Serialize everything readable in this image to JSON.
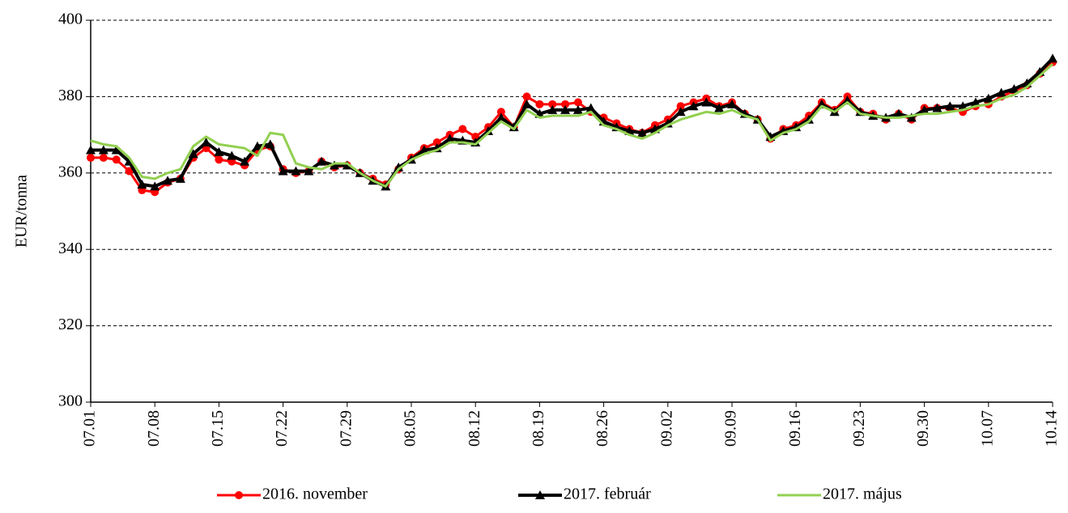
{
  "chart_data": {
    "type": "line",
    "y_label": "EUR/tonna",
    "categories": [
      "07.01",
      null,
      null,
      null,
      null,
      "07.08",
      null,
      null,
      null,
      null,
      "07.15",
      null,
      null,
      null,
      null,
      "07.22",
      null,
      null,
      null,
      null,
      "07.29",
      null,
      null,
      null,
      null,
      "08.05",
      null,
      null,
      null,
      null,
      "08.12",
      null,
      null,
      null,
      null,
      "08.19",
      null,
      null,
      null,
      null,
      "08.26",
      null,
      null,
      null,
      null,
      "09.02",
      null,
      null,
      null,
      null,
      "09.09",
      null,
      null,
      null,
      null,
      "09.16",
      null,
      null,
      null,
      null,
      "09.23",
      null,
      null,
      null,
      null,
      "09.30",
      null,
      null,
      null,
      null,
      "10.07",
      null,
      null,
      null,
      null,
      "10.14"
    ],
    "series": [
      {
        "name": "2016. november",
        "color": "#ff0000",
        "marker": "circle",
        "values": [
          364,
          364,
          363.5,
          360.5,
          355.5,
          355,
          357.5,
          358.5,
          364,
          366.5,
          363.5,
          363,
          362,
          366,
          367,
          361,
          360,
          360.5,
          363,
          361.5,
          362,
          360,
          358.5,
          357,
          361,
          364,
          366.5,
          368,
          370,
          371.5,
          369.5,
          372,
          376,
          372,
          380,
          378,
          378,
          378,
          378.5,
          376,
          374.5,
          373,
          371.5,
          370.5,
          372.5,
          374,
          377.5,
          378.5,
          379.5,
          377.5,
          378.5,
          375.5,
          374,
          369,
          371.5,
          372.5,
          375,
          378.5,
          376.5,
          380,
          376,
          375.5,
          374,
          375.5,
          374,
          377,
          377,
          377,
          376,
          377.5,
          378,
          380,
          381.5,
          383,
          386,
          389
        ]
      },
      {
        "name": "2017. február",
        "color": "#000000",
        "marker": "triangle",
        "values": [
          366,
          366,
          366,
          363,
          357,
          356.5,
          358,
          358.5,
          365,
          368,
          365.5,
          364.5,
          363,
          367,
          367.5,
          360.5,
          360.5,
          360.5,
          363,
          362,
          362,
          360,
          358,
          356.5,
          361.5,
          363.5,
          366,
          366.5,
          369,
          368.5,
          368,
          371,
          374.5,
          372,
          378,
          375.5,
          376.5,
          376.5,
          376.5,
          377,
          373.5,
          372,
          371,
          370.5,
          371.5,
          373,
          376,
          377.5,
          378.5,
          377,
          378,
          375.5,
          374,
          369.5,
          371,
          372,
          374,
          378,
          376,
          379,
          376,
          375,
          374.5,
          375.5,
          374.5,
          376.5,
          377,
          377.5,
          377.5,
          378.5,
          379.5,
          381,
          382,
          383.5,
          386.5,
          390
        ]
      },
      {
        "name": "2017. május",
        "color": "#92d050",
        "marker": "none",
        "values": [
          368.5,
          367.5,
          367,
          364,
          359,
          358.5,
          360,
          361,
          367,
          369.5,
          367.5,
          367,
          366.5,
          364.5,
          370.5,
          370,
          362.5,
          361.5,
          361,
          362.5,
          362.5,
          360,
          358,
          356.5,
          361,
          363.5,
          365,
          366,
          368,
          368,
          367.5,
          370.5,
          373.5,
          371.5,
          376.5,
          374.5,
          375,
          375,
          375,
          376,
          372.5,
          371.5,
          370,
          369,
          370.5,
          372.5,
          374,
          375,
          376,
          375.5,
          376.5,
          375,
          374,
          368.5,
          370.5,
          371.5,
          373.5,
          377.5,
          376,
          378.5,
          375.5,
          375,
          374.5,
          374.5,
          375,
          375.5,
          375.5,
          376,
          376.5,
          377.5,
          378,
          379.5,
          380.5,
          382.5,
          385.5,
          388.5
        ]
      }
    ],
    "ylim": [
      300,
      400
    ],
    "yticks": [
      300,
      320,
      340,
      360,
      380,
      400
    ],
    "grid": true,
    "legend": "bottom"
  }
}
